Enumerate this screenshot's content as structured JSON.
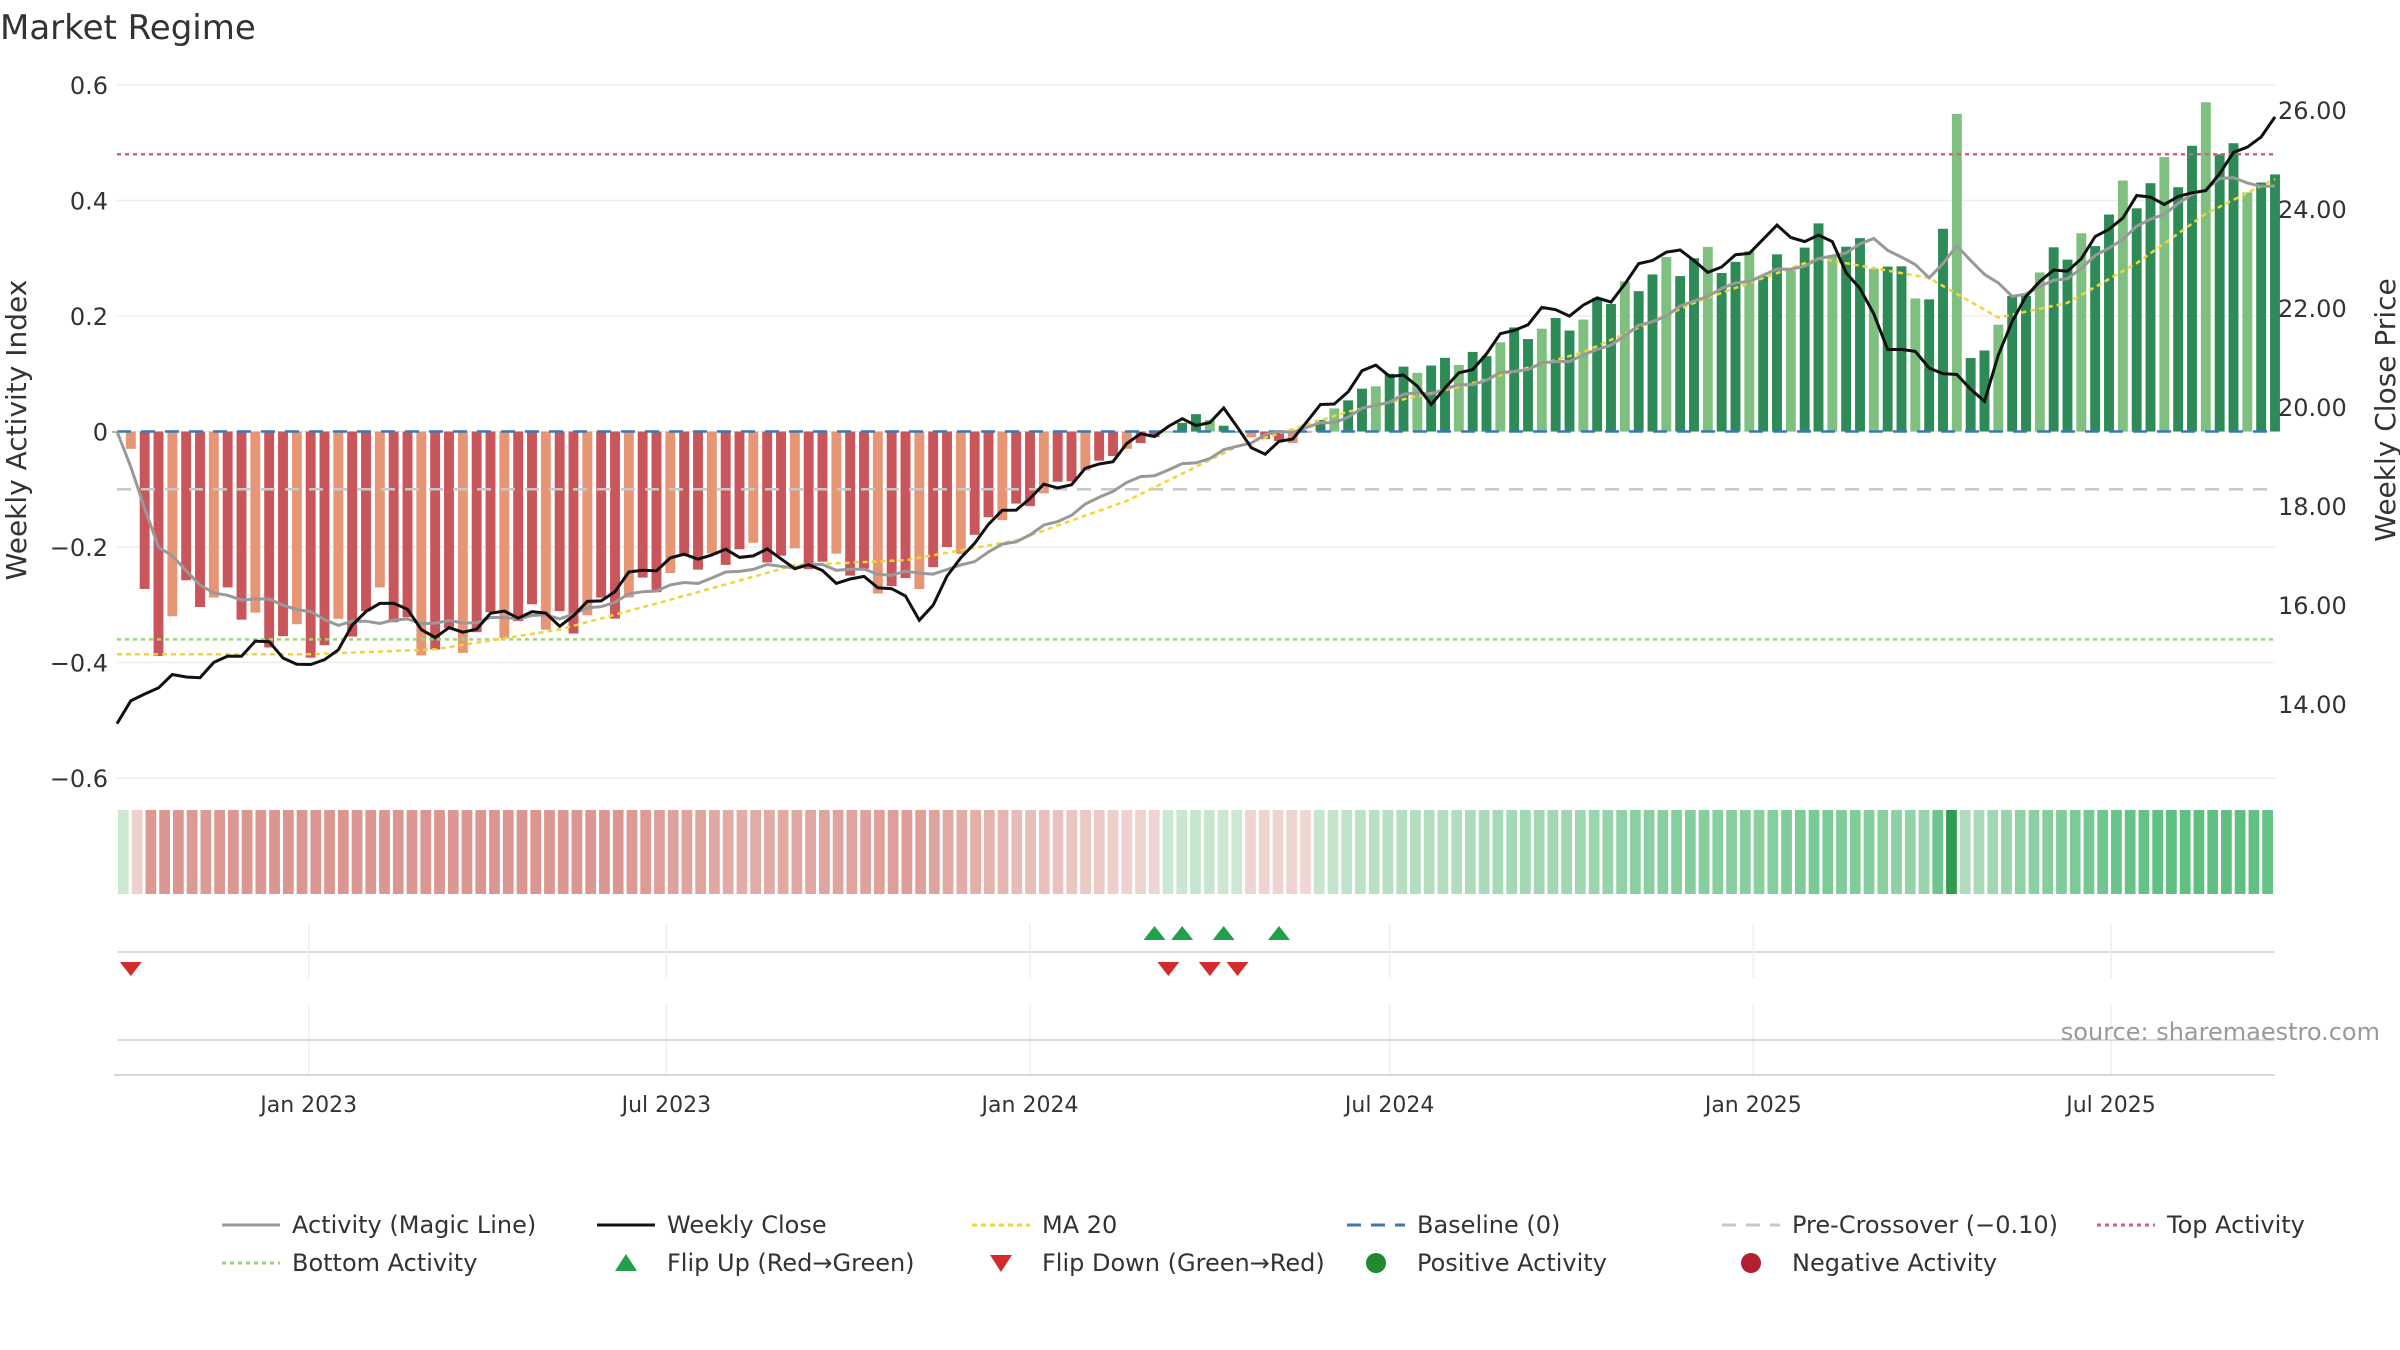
{
  "chart_data": {
    "type": "bar",
    "title": "Market Regime",
    "ylabel_left": "Weekly Activity Index",
    "ylabel_right": "Weekly Close Price",
    "ylim_left": [
      -0.6,
      0.6
    ],
    "ylim_right": [
      12.5,
      26.5
    ],
    "yticks_left": [
      "0.6",
      "0.4",
      "0.2",
      "0",
      "−0.2",
      "−0.4",
      "−0.6"
    ],
    "yticks_left_values": [
      0.6,
      0.4,
      0.2,
      0,
      -0.2,
      -0.4,
      -0.6
    ],
    "yticks_right": [
      "26.00",
      "24.00",
      "22.00",
      "20.00",
      "18.00",
      "16.00",
      "14.00"
    ],
    "yticks_right_values": [
      26,
      24,
      22,
      20,
      18,
      16,
      14
    ],
    "x_start": "2022-09-26",
    "x_end": "2025-09-22",
    "xticks": [
      {
        "label": "Jan 2023",
        "date": "2023-01-01"
      },
      {
        "label": "Jul 2023",
        "date": "2023-07-01"
      },
      {
        "label": "Jan 2024",
        "date": "2024-01-01"
      },
      {
        "label": "Jul 2024",
        "date": "2024-07-01"
      },
      {
        "label": "Jan 2025",
        "date": "2025-01-01"
      },
      {
        "label": "Jul 2025",
        "date": "2025-07-01"
      }
    ],
    "reference_lines": {
      "top_activity": 0.48,
      "bottom_activity": -0.36,
      "pre_crossover": -0.1,
      "baseline": 0
    },
    "activity_keypoints": [
      {
        "date": "2022-09-26",
        "value": 0.0
      },
      {
        "date": "2022-10-03",
        "value": -0.03
      },
      {
        "date": "2022-10-10",
        "value": -0.29
      },
      {
        "date": "2022-10-17",
        "value": -0.36
      },
      {
        "date": "2022-10-31",
        "value": -0.28
      },
      {
        "date": "2022-11-21",
        "value": -0.3
      },
      {
        "date": "2022-12-12",
        "value": -0.34
      },
      {
        "date": "2023-01-09",
        "value": -0.37
      },
      {
        "date": "2023-02-06",
        "value": -0.3
      },
      {
        "date": "2023-03-06",
        "value": -0.37
      },
      {
        "date": "2023-04-03",
        "value": -0.34
      },
      {
        "date": "2023-05-01",
        "value": -0.33
      },
      {
        "date": "2023-06-05",
        "value": -0.3
      },
      {
        "date": "2023-07-03",
        "value": -0.25
      },
      {
        "date": "2023-08-07",
        "value": -0.2
      },
      {
        "date": "2023-09-04",
        "value": -0.22
      },
      {
        "date": "2023-10-02",
        "value": -0.24
      },
      {
        "date": "2023-10-30",
        "value": -0.27
      },
      {
        "date": "2023-11-27",
        "value": -0.2
      },
      {
        "date": "2023-12-25",
        "value": -0.13
      },
      {
        "date": "2024-01-22",
        "value": -0.08
      },
      {
        "date": "2024-02-19",
        "value": -0.03
      },
      {
        "date": "2024-03-11",
        "value": 0.0
      },
      {
        "date": "2024-03-25",
        "value": 0.03
      },
      {
        "date": "2024-04-22",
        "value": -0.01
      },
      {
        "date": "2024-05-13",
        "value": -0.02
      },
      {
        "date": "2024-06-03",
        "value": 0.04
      },
      {
        "date": "2024-07-01",
        "value": 0.1
      },
      {
        "date": "2024-08-05",
        "value": 0.12
      },
      {
        "date": "2024-09-02",
        "value": 0.17
      },
      {
        "date": "2024-10-07",
        "value": 0.19
      },
      {
        "date": "2024-11-04",
        "value": 0.27
      },
      {
        "date": "2024-12-02",
        "value": 0.3
      },
      {
        "date": "2025-01-06",
        "value": 0.28
      },
      {
        "date": "2025-02-03",
        "value": 0.34
      },
      {
        "date": "2025-03-03",
        "value": 0.3
      },
      {
        "date": "2025-03-31",
        "value": 0.22
      },
      {
        "date": "2025-04-14",
        "value": 0.56
      },
      {
        "date": "2025-04-21",
        "value": 0.12
      },
      {
        "date": "2025-05-19",
        "value": 0.25
      },
      {
        "date": "2025-06-16",
        "value": 0.33
      },
      {
        "date": "2025-07-07",
        "value": 0.41
      },
      {
        "date": "2025-08-04",
        "value": 0.45
      },
      {
        "date": "2025-08-18",
        "value": 0.52
      },
      {
        "date": "2025-09-22",
        "value": 0.42
      }
    ],
    "close_keypoints": [
      {
        "date": "2022-09-26",
        "value": 13.6
      },
      {
        "date": "2022-10-10",
        "value": 14.2
      },
      {
        "date": "2022-11-07",
        "value": 14.7
      },
      {
        "date": "2022-12-05",
        "value": 15.2
      },
      {
        "date": "2023-01-02",
        "value": 14.7
      },
      {
        "date": "2023-02-06",
        "value": 16.1
      },
      {
        "date": "2023-03-06",
        "value": 15.4
      },
      {
        "date": "2023-04-10",
        "value": 15.8
      },
      {
        "date": "2023-05-08",
        "value": 15.7
      },
      {
        "date": "2023-06-12",
        "value": 16.5
      },
      {
        "date": "2023-07-17",
        "value": 17.1
      },
      {
        "date": "2023-08-14",
        "value": 17.0
      },
      {
        "date": "2023-09-18",
        "value": 16.7
      },
      {
        "date": "2023-10-23",
        "value": 16.3
      },
      {
        "date": "2023-11-06",
        "value": 15.7
      },
      {
        "date": "2023-12-04",
        "value": 17.4
      },
      {
        "date": "2024-01-08",
        "value": 18.3
      },
      {
        "date": "2024-02-12",
        "value": 19.0
      },
      {
        "date": "2024-03-11",
        "value": 19.6
      },
      {
        "date": "2024-04-08",
        "value": 19.9
      },
      {
        "date": "2024-04-29",
        "value": 18.9
      },
      {
        "date": "2024-05-27",
        "value": 20.0
      },
      {
        "date": "2024-06-24",
        "value": 20.8
      },
      {
        "date": "2024-07-22",
        "value": 20.2
      },
      {
        "date": "2024-08-19",
        "value": 21.1
      },
      {
        "date": "2024-09-16",
        "value": 21.9
      },
      {
        "date": "2024-10-21",
        "value": 22.2
      },
      {
        "date": "2024-11-18",
        "value": 23.2
      },
      {
        "date": "2024-12-16",
        "value": 22.8
      },
      {
        "date": "2025-01-13",
        "value": 23.5
      },
      {
        "date": "2025-02-10",
        "value": 23.4
      },
      {
        "date": "2025-03-10",
        "value": 21.2
      },
      {
        "date": "2025-04-07",
        "value": 20.8
      },
      {
        "date": "2025-04-28",
        "value": 20.2
      },
      {
        "date": "2025-05-19",
        "value": 22.3
      },
      {
        "date": "2025-06-16",
        "value": 23.1
      },
      {
        "date": "2025-07-14",
        "value": 24.1
      },
      {
        "date": "2025-08-11",
        "value": 24.3
      },
      {
        "date": "2025-09-01",
        "value": 25.0
      },
      {
        "date": "2025-09-22",
        "value": 25.7
      }
    ],
    "magic_keypoints": [
      {
        "date": "2022-09-26",
        "value": 0.0
      },
      {
        "date": "2022-10-17",
        "value": -0.2
      },
      {
        "date": "2022-11-14",
        "value": -0.28
      },
      {
        "date": "2022-12-19",
        "value": -0.3
      },
      {
        "date": "2023-01-16",
        "value": -0.33
      },
      {
        "date": "2023-03-06",
        "value": -0.33
      },
      {
        "date": "2023-05-08",
        "value": -0.32
      },
      {
        "date": "2023-06-19",
        "value": -0.28
      },
      {
        "date": "2023-08-07",
        "value": -0.24
      },
      {
        "date": "2023-09-18",
        "value": -0.23
      },
      {
        "date": "2023-10-23",
        "value": -0.25
      },
      {
        "date": "2023-11-20",
        "value": -0.24
      },
      {
        "date": "2024-01-01",
        "value": -0.18
      },
      {
        "date": "2024-02-12",
        "value": -0.1
      },
      {
        "date": "2024-03-25",
        "value": -0.05
      },
      {
        "date": "2024-04-29",
        "value": -0.01
      },
      {
        "date": "2024-06-03",
        "value": 0.02
      },
      {
        "date": "2024-07-08",
        "value": 0.06
      },
      {
        "date": "2024-08-19",
        "value": 0.09
      },
      {
        "date": "2024-10-14",
        "value": 0.14
      },
      {
        "date": "2024-12-09",
        "value": 0.24
      },
      {
        "date": "2025-01-27",
        "value": 0.29
      },
      {
        "date": "2025-03-03",
        "value": 0.33
      },
      {
        "date": "2025-03-31",
        "value": 0.27
      },
      {
        "date": "2025-04-14",
        "value": 0.32
      },
      {
        "date": "2025-05-12",
        "value": 0.23
      },
      {
        "date": "2025-06-09",
        "value": 0.27
      },
      {
        "date": "2025-07-14",
        "value": 0.35
      },
      {
        "date": "2025-08-11",
        "value": 0.41
      },
      {
        "date": "2025-08-25",
        "value": 0.44
      },
      {
        "date": "2025-09-22",
        "value": 0.42
      }
    ],
    "ma20_keypoints": [
      {
        "date": "2022-09-26",
        "value": 15.0
      },
      {
        "date": "2023-01-02",
        "value": 15.0
      },
      {
        "date": "2023-03-06",
        "value": 15.1
      },
      {
        "date": "2023-05-08",
        "value": 15.5
      },
      {
        "date": "2023-07-03",
        "value": 16.1
      },
      {
        "date": "2023-09-04",
        "value": 16.8
      },
      {
        "date": "2023-10-30",
        "value": 16.9
      },
      {
        "date": "2023-12-25",
        "value": 17.3
      },
      {
        "date": "2024-02-19",
        "value": 18.1
      },
      {
        "date": "2024-04-15",
        "value": 19.2
      },
      {
        "date": "2024-06-10",
        "value": 19.9
      },
      {
        "date": "2024-08-05",
        "value": 20.4
      },
      {
        "date": "2024-10-07",
        "value": 21.1
      },
      {
        "date": "2024-12-02",
        "value": 22.1
      },
      {
        "date": "2025-02-03",
        "value": 23.0
      },
      {
        "date": "2025-03-31",
        "value": 22.6
      },
      {
        "date": "2025-05-05",
        "value": 21.8
      },
      {
        "date": "2025-06-09",
        "value": 22.1
      },
      {
        "date": "2025-07-14",
        "value": 22.9
      },
      {
        "date": "2025-08-18",
        "value": 23.9
      },
      {
        "date": "2025-09-22",
        "value": 24.6
      }
    ],
    "flip_up_dates": [
      "2024-03-04",
      "2024-03-18",
      "2024-04-08",
      "2024-05-06"
    ],
    "flip_down_dates": [
      "2022-10-03",
      "2024-03-11",
      "2024-04-01",
      "2024-04-15"
    ],
    "source_text": "source: sharemaestro.com",
    "legend": [
      {
        "label": "Activity (Magic Line)",
        "kind": "line",
        "color": "#999999",
        "dash": ""
      },
      {
        "label": "Weekly Close",
        "kind": "line",
        "color": "#111111",
        "dash": ""
      },
      {
        "label": "MA 20",
        "kind": "line",
        "color": "#f0d53a",
        "dash": "5,4"
      },
      {
        "label": "Baseline (0)",
        "kind": "line",
        "color": "#3a78b5",
        "dash": "14,10"
      },
      {
        "label": "Pre-Crossover (−0.10)",
        "kind": "line",
        "color": "#c8c8c8",
        "dash": "14,10"
      },
      {
        "label": "Top Activity",
        "kind": "line",
        "color": "#d9607a",
        "dash": "4,4"
      },
      {
        "label": "Bottom Activity",
        "kind": "line",
        "color": "#9bd47a",
        "dash": "4,4"
      },
      {
        "label": "Flip Up (Red→Green)",
        "kind": "tri-up",
        "color": "#21a04b",
        "dash": ""
      },
      {
        "label": "Flip Down (Green→Red)",
        "kind": "tri-down",
        "color": "#d22b2b",
        "dash": ""
      },
      {
        "label": "Positive Activity",
        "kind": "dot",
        "color": "#1f8a2e",
        "dash": ""
      },
      {
        "label": "Negative Activity",
        "kind": "dot",
        "color": "#b22130",
        "dash": ""
      }
    ],
    "colors": {
      "pos_dark": "#2e8b57",
      "pos_light": "#7fbf7f",
      "neg_dark": "#c9565a",
      "neg_light": "#e69575",
      "close": "#111111",
      "magic": "#999999",
      "ma20": "#f0d53a",
      "grid": "#eeeeee"
    }
  }
}
